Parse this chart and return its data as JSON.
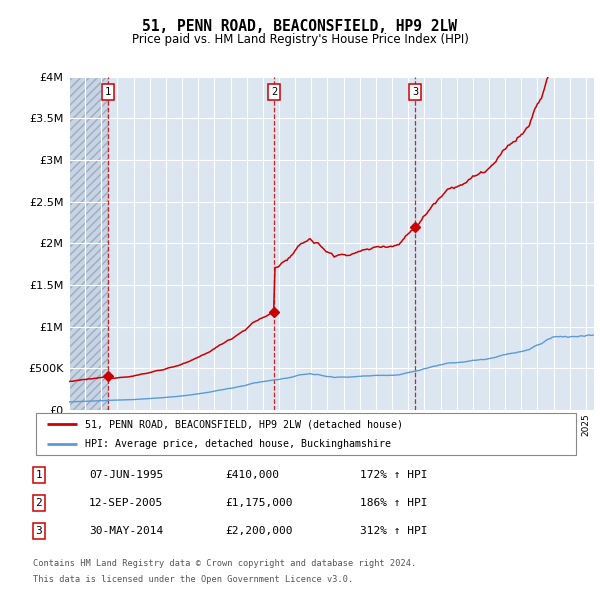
{
  "title": "51, PENN ROAD, BEACONSFIELD, HP9 2LW",
  "subtitle": "Price paid vs. HM Land Registry's House Price Index (HPI)",
  "sale_dates_float": [
    1995.417,
    2005.708,
    2014.417
  ],
  "sale_prices": [
    410000,
    1175000,
    2200000
  ],
  "sale_labels": [
    "1",
    "2",
    "3"
  ],
  "legend_line1": "51, PENN ROAD, BEACONSFIELD, HP9 2LW (detached house)",
  "legend_line2": "HPI: Average price, detached house, Buckinghamshire",
  "table_rows": [
    [
      "1",
      "07-JUN-1995",
      "£410,000",
      "172% ↑ HPI"
    ],
    [
      "2",
      "12-SEP-2005",
      "£1,175,000",
      "186% ↑ HPI"
    ],
    [
      "3",
      "30-MAY-2014",
      "£2,200,000",
      "312% ↑ HPI"
    ]
  ],
  "footnote1": "Contains HM Land Registry data © Crown copyright and database right 2024.",
  "footnote2": "This data is licensed under the Open Government Licence v3.0.",
  "line_color": "#cc0000",
  "hpi_color": "#5b9bd5",
  "bg_color": "#dce6f1",
  "ylim": [
    0,
    4000000
  ],
  "yticks": [
    0,
    500000,
    1000000,
    1500000,
    2000000,
    2500000,
    3000000,
    3500000,
    4000000
  ],
  "xstart": 1993,
  "xend": 2025.5
}
